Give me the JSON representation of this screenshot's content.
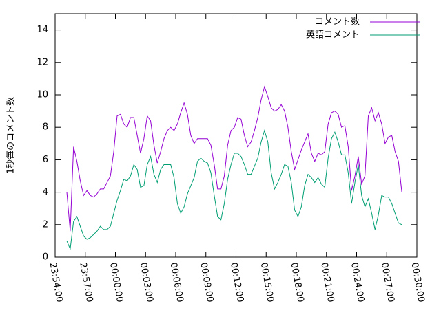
{
  "chart_data": {
    "type": "line",
    "ylabel": "1秒毎のコメント数",
    "x": [
      "23:55:10",
      "23:55:30",
      "23:55:50",
      "23:56:10",
      "23:56:30",
      "23:56:50",
      "23:57:10",
      "23:57:30",
      "23:57:50",
      "23:58:10",
      "23:58:30",
      "23:58:50",
      "23:59:10",
      "23:59:30",
      "23:59:50",
      "00:00:10",
      "00:00:30",
      "00:00:50",
      "00:01:10",
      "00:01:30",
      "00:01:50",
      "00:02:10",
      "00:02:30",
      "00:02:50",
      "00:03:10",
      "00:03:30",
      "00:03:50",
      "00:04:10",
      "00:04:30",
      "00:04:50",
      "00:05:10",
      "00:05:30",
      "00:05:50",
      "00:06:10",
      "00:06:30",
      "00:06:50",
      "00:07:10",
      "00:07:30",
      "00:07:50",
      "00:08:10",
      "00:08:30",
      "00:08:50",
      "00:09:10",
      "00:09:30",
      "00:09:50",
      "00:10:10",
      "00:10:30",
      "00:10:50",
      "00:11:10",
      "00:11:30",
      "00:11:50",
      "00:12:10",
      "00:12:30",
      "00:12:50",
      "00:13:10",
      "00:13:30",
      "00:13:50",
      "00:14:10",
      "00:14:30",
      "00:14:50",
      "00:15:10",
      "00:15:30",
      "00:15:50",
      "00:16:10",
      "00:16:30",
      "00:16:50",
      "00:17:10",
      "00:17:30",
      "00:17:50",
      "00:18:10",
      "00:18:30",
      "00:18:50",
      "00:19:10",
      "00:19:30",
      "00:19:50",
      "00:20:10",
      "00:20:30",
      "00:20:50",
      "00:21:10",
      "00:21:30",
      "00:21:50",
      "00:22:10",
      "00:22:30",
      "00:22:50",
      "00:23:10",
      "00:23:30",
      "00:23:50",
      "00:24:10",
      "00:24:30",
      "00:24:50",
      "00:25:10",
      "00:25:30",
      "00:25:50",
      "00:26:10",
      "00:26:30",
      "00:26:50",
      "00:27:10",
      "00:27:30",
      "00:27:50",
      "00:28:10",
      "00:28:30"
    ],
    "series": [
      {
        "name": "コメント数",
        "color": "#9400d3",
        "values": [
          4.0,
          1.6,
          6.8,
          5.9,
          4.7,
          3.8,
          4.1,
          3.8,
          3.7,
          3.9,
          4.2,
          4.2,
          4.6,
          5.0,
          6.5,
          8.7,
          8.8,
          8.2,
          8.0,
          8.6,
          8.6,
          7.5,
          6.4,
          7.3,
          8.7,
          8.4,
          6.9,
          5.8,
          6.5,
          7.3,
          7.8,
          8.0,
          7.8,
          8.2,
          8.9,
          9.5,
          8.8,
          7.5,
          7.0,
          7.3,
          7.3,
          7.3,
          7.3,
          6.9,
          5.7,
          4.2,
          4.2,
          5.0,
          6.9,
          7.8,
          8.0,
          8.6,
          8.5,
          7.5,
          6.8,
          7.1,
          7.8,
          8.6,
          9.7,
          10.5,
          9.9,
          9.2,
          9.0,
          9.1,
          9.4,
          9.0,
          8.0,
          6.5,
          5.4,
          6.0,
          6.6,
          7.1,
          7.6,
          6.4,
          5.9,
          6.4,
          6.3,
          6.5,
          8.2,
          8.9,
          9.0,
          8.8,
          8.0,
          8.1,
          6.8,
          4.1,
          5.0,
          6.2,
          4.5,
          5.0,
          8.7,
          9.2,
          8.4,
          8.9,
          8.2,
          7.0,
          7.4,
          7.5,
          6.5,
          5.9,
          4.0
        ]
      },
      {
        "name": "英語コメント",
        "color": "#009e73",
        "values": [
          1.0,
          0.5,
          2.2,
          2.5,
          1.9,
          1.3,
          1.1,
          1.2,
          1.4,
          1.6,
          1.9,
          1.7,
          1.7,
          1.9,
          2.7,
          3.5,
          4.1,
          4.8,
          4.7,
          5.0,
          5.7,
          5.4,
          4.3,
          4.4,
          5.7,
          6.2,
          5.1,
          4.6,
          5.4,
          5.7,
          5.7,
          5.7,
          4.9,
          3.3,
          2.7,
          3.1,
          3.9,
          4.4,
          4.9,
          5.9,
          6.1,
          5.9,
          5.8,
          5.2,
          3.8,
          2.5,
          2.3,
          3.3,
          4.8,
          5.7,
          6.4,
          6.4,
          6.2,
          5.7,
          5.1,
          5.1,
          5.6,
          6.1,
          7.1,
          7.8,
          7.1,
          5.2,
          4.2,
          4.6,
          5.1,
          5.7,
          5.6,
          4.6,
          2.9,
          2.5,
          3.1,
          4.4,
          5.1,
          4.9,
          4.6,
          4.9,
          4.5,
          4.3,
          6.1,
          7.3,
          7.7,
          7.1,
          6.3,
          6.3,
          5.2,
          3.3,
          4.6,
          5.7,
          3.8,
          3.1,
          3.6,
          2.7,
          1.7,
          2.6,
          3.8,
          3.7,
          3.7,
          3.3,
          2.7,
          2.1,
          2.0
        ]
      }
    ],
    "xlim": [
      "23:54:00",
      "00:30:00"
    ],
    "xticks": [
      "23:54:00",
      "23:57:00",
      "00:00:00",
      "00:03:00",
      "00:06:00",
      "00:09:00",
      "00:12:00",
      "00:15:00",
      "00:18:00",
      "00:21:00",
      "00:24:00",
      "00:27:00",
      "00:30:00"
    ],
    "ylim": [
      0,
      15
    ],
    "yticks": [
      0,
      2,
      4,
      6,
      8,
      10,
      12,
      14
    ],
    "legend": "top-right"
  }
}
